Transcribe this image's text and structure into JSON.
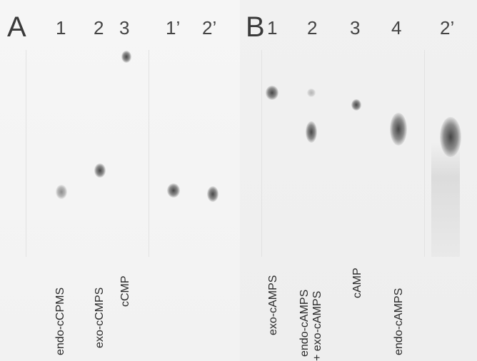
{
  "panel_a": {
    "letter": "A",
    "lanes": [
      {
        "num": "1",
        "label": "endo-cCPMS"
      },
      {
        "num": "2",
        "label": "exo-cCMPS"
      },
      {
        "num": "3",
        "label": "cCMP"
      },
      {
        "num": "1’",
        "label": ""
      },
      {
        "num": "2’",
        "label": ""
      }
    ]
  },
  "panel_b": {
    "letter": "B",
    "lanes": [
      {
        "num": "1",
        "label": "exo-cAMPS"
      },
      {
        "num": "2",
        "label": "endo-cAMPS",
        "label2": "+ exo-cAMPS"
      },
      {
        "num": "3",
        "label": "cAMP"
      },
      {
        "num": "4",
        "label": "endo-cAMPS"
      },
      {
        "num": "2’",
        "label": ""
      }
    ]
  }
}
